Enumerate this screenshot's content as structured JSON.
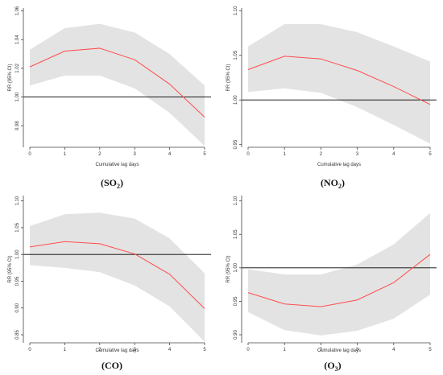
{
  "colors": {
    "band": "#e3e3e3",
    "line": "#ff4d4d",
    "reference": "#000000",
    "axis": "#444444"
  },
  "chart_data": [
    {
      "type": "line",
      "caption_main": "(SO",
      "caption_sub": "2",
      "caption_end": ")",
      "xlabel": "Cumulative lag days",
      "ylabel": "RR (95% CI)",
      "x": [
        0,
        1,
        2,
        3,
        4,
        5
      ],
      "ylim": [
        0.965,
        1.062
      ],
      "yticks": [
        "0.98",
        "1.00",
        "1.02",
        "1.04",
        "1.06"
      ],
      "ytick_values": [
        0.98,
        1.0,
        1.02,
        1.04,
        1.06
      ],
      "reference_line": 1.0,
      "series": [
        {
          "role": "estimate",
          "values": [
            1.021,
            1.032,
            1.034,
            1.026,
            1.009,
            0.986
          ]
        },
        {
          "role": "ci-lower",
          "values": [
            1.008,
            1.015,
            1.015,
            1.006,
            0.989,
            0.966
          ]
        },
        {
          "role": "ci-upper",
          "values": [
            1.033,
            1.048,
            1.051,
            1.045,
            1.03,
            1.008
          ]
        }
      ]
    },
    {
      "type": "line",
      "caption_main": "(NO",
      "caption_sub": "2",
      "caption_end": ")",
      "xlabel": "Cumulative lag days",
      "ylabel": "RR (95% CI)",
      "x": [
        0,
        1,
        2,
        3,
        4,
        5
      ],
      "ylim": [
        0.947,
        1.103
      ],
      "yticks": [
        "0.95",
        "1.00",
        "1.05",
        "1.10"
      ],
      "ytick_values": [
        0.95,
        1.0,
        1.05,
        1.1
      ],
      "reference_line": 1.0,
      "series": [
        {
          "role": "estimate",
          "values": [
            1.034,
            1.049,
            1.046,
            1.033,
            1.015,
            0.995
          ]
        },
        {
          "role": "ci-lower",
          "values": [
            1.009,
            1.013,
            1.008,
            0.992,
            0.972,
            0.951
          ]
        },
        {
          "role": "ci-upper",
          "values": [
            1.06,
            1.085,
            1.085,
            1.076,
            1.06,
            1.043
          ]
        }
      ]
    },
    {
      "type": "line",
      "caption_main": "(CO)",
      "caption_sub": "",
      "caption_end": "",
      "xlabel": "Cumulative lag days",
      "ylabel": "RR (95% CI)",
      "x": [
        0,
        1,
        2,
        3,
        4,
        5
      ],
      "ylim": [
        0.835,
        1.11
      ],
      "yticks": [
        "0.85",
        "0.90",
        "0.95",
        "1.00",
        "1.05",
        "1.10"
      ],
      "ytick_values": [
        0.85,
        0.9,
        0.95,
        1.0,
        1.05,
        1.1
      ],
      "reference_line": 1.0,
      "series": [
        {
          "role": "estimate",
          "values": [
            1.014,
            1.024,
            1.02,
            1.001,
            0.963,
            0.899
          ]
        },
        {
          "role": "ci-lower",
          "values": [
            0.98,
            0.975,
            0.967,
            0.942,
            0.903,
            0.837
          ]
        },
        {
          "role": "ci-upper",
          "values": [
            1.053,
            1.075,
            1.078,
            1.067,
            1.03,
            0.965
          ]
        }
      ]
    },
    {
      "type": "line",
      "caption_main": "(O",
      "caption_sub": "3",
      "caption_end": ")",
      "xlabel": "Cumulative lag days",
      "ylabel": "RR (95% CI)",
      "x": [
        0,
        1,
        2,
        3,
        4,
        5
      ],
      "ylim": [
        0.888,
        1.108
      ],
      "yticks": [
        "0.90",
        "0.95",
        "1.00",
        "1.05",
        "1.10"
      ],
      "ytick_values": [
        0.9,
        0.95,
        1.0,
        1.05,
        1.1
      ],
      "reference_line": 1.0,
      "series": [
        {
          "role": "estimate",
          "values": [
            0.963,
            0.946,
            0.942,
            0.952,
            0.978,
            1.02
          ]
        },
        {
          "role": "ci-lower",
          "values": [
            0.934,
            0.907,
            0.899,
            0.906,
            0.924,
            0.96
          ]
        },
        {
          "role": "ci-upper",
          "values": [
            0.998,
            0.99,
            0.99,
            1.005,
            1.035,
            1.082
          ]
        }
      ]
    }
  ]
}
